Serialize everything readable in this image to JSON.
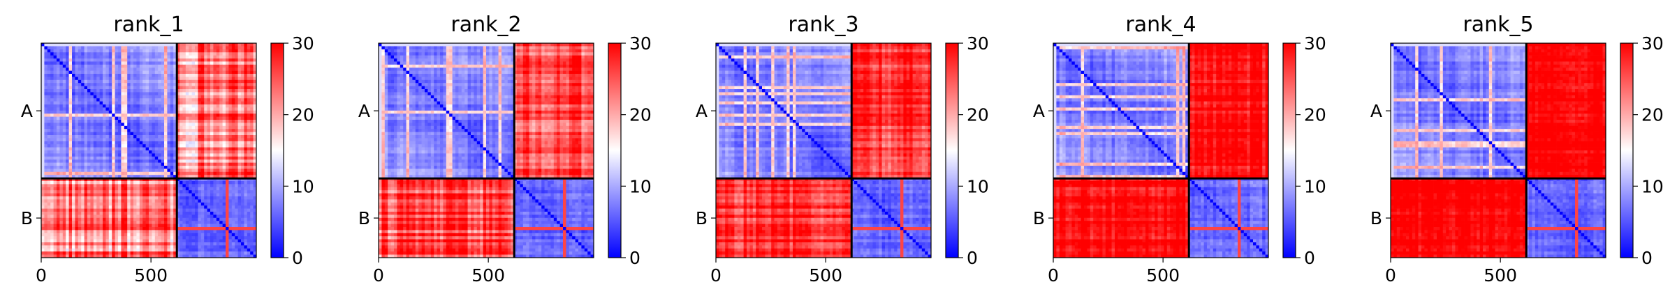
{
  "chart_data": [
    {
      "type": "heatmap",
      "title": "rank_1",
      "x_ticks": [
        "0",
        "500"
      ],
      "y_ticks": [
        "A",
        "B"
      ],
      "colorbar": {
        "ticks": [
          "0",
          "10",
          "20",
          "30"
        ],
        "vmin": 0,
        "vmax": 30,
        "colors": [
          "#0000ff",
          "#ffffff",
          "#ff0000"
        ]
      },
      "x_range": [
        0,
        980
      ],
      "chains": [
        {
          "name": "A",
          "length": 618
        },
        {
          "name": "B",
          "length": 362
        }
      ],
      "offdiag_mean": 22
    },
    {
      "type": "heatmap",
      "title": "rank_2",
      "x_ticks": [
        "0",
        "500"
      ],
      "y_ticks": [
        "A",
        "B"
      ],
      "colorbar": {
        "ticks": [
          "0",
          "10",
          "20",
          "30"
        ],
        "vmin": 0,
        "vmax": 30,
        "colors": [
          "#0000ff",
          "#ffffff",
          "#ff0000"
        ]
      },
      "x_range": [
        0,
        980
      ],
      "chains": [
        {
          "name": "A",
          "length": 618
        },
        {
          "name": "B",
          "length": 362
        }
      ],
      "offdiag_mean": 24
    },
    {
      "type": "heatmap",
      "title": "rank_3",
      "x_ticks": [
        "0",
        "500"
      ],
      "y_ticks": [
        "A",
        "B"
      ],
      "colorbar": {
        "ticks": [
          "0",
          "10",
          "20",
          "30"
        ],
        "vmin": 0,
        "vmax": 30,
        "colors": [
          "#0000ff",
          "#ffffff",
          "#ff0000"
        ]
      },
      "x_range": [
        0,
        980
      ],
      "chains": [
        {
          "name": "A",
          "length": 618
        },
        {
          "name": "B",
          "length": 362
        }
      ],
      "offdiag_mean": 26
    },
    {
      "type": "heatmap",
      "title": "rank_4",
      "x_ticks": [
        "0",
        "500"
      ],
      "y_ticks": [
        "A",
        "B"
      ],
      "colorbar": {
        "ticks": [
          "0",
          "10",
          "20",
          "30"
        ],
        "vmin": 0,
        "vmax": 30,
        "colors": [
          "#0000ff",
          "#ffffff",
          "#ff0000"
        ]
      },
      "x_range": [
        0,
        980
      ],
      "chains": [
        {
          "name": "A",
          "length": 618
        },
        {
          "name": "B",
          "length": 362
        }
      ],
      "offdiag_mean": 28
    },
    {
      "type": "heatmap",
      "title": "rank_5",
      "x_ticks": [
        "0",
        "500"
      ],
      "y_ticks": [
        "A",
        "B"
      ],
      "colorbar": {
        "ticks": [
          "0",
          "10",
          "20",
          "30"
        ],
        "vmin": 0,
        "vmax": 30,
        "colors": [
          "#0000ff",
          "#ffffff",
          "#ff0000"
        ]
      },
      "x_range": [
        0,
        980
      ],
      "chains": [
        {
          "name": "A",
          "length": 618
        },
        {
          "name": "B",
          "length": 362
        }
      ],
      "offdiag_mean": 29
    }
  ]
}
